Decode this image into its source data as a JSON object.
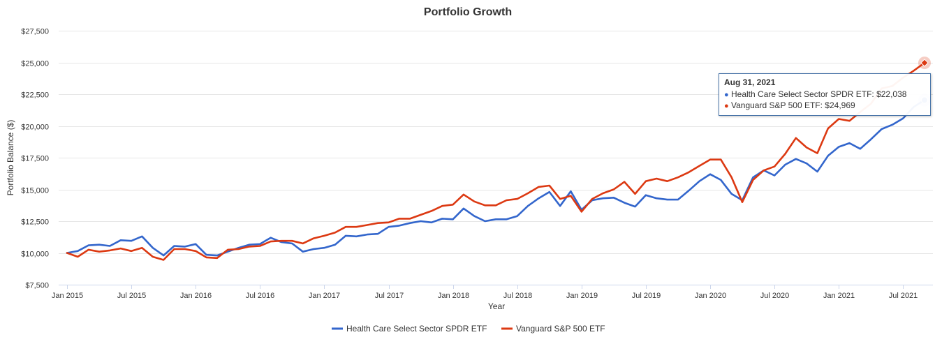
{
  "chart_data": {
    "type": "line",
    "title": "Portfolio Growth",
    "xlabel": "Year",
    "ylabel": "Portfolio Balance ($)",
    "ylim": [
      7500,
      27500
    ],
    "yticks": [
      7500,
      10000,
      12500,
      15000,
      17500,
      20000,
      22500,
      25000,
      27500
    ],
    "ytick_labels": [
      "$7,500",
      "$10,000",
      "$12,500",
      "$15,000",
      "$17,500",
      "$20,000",
      "$22,500",
      "$25,000",
      "$27,500"
    ],
    "xtick_labels": [
      "Jan 2015",
      "Jul 2015",
      "Jan 2016",
      "Jul 2016",
      "Jan 2017",
      "Jul 2017",
      "Jan 2018",
      "Jul 2018",
      "Jan 2019",
      "Jul 2019",
      "Jan 2020",
      "Jul 2020",
      "Jan 2021",
      "Jul 2021"
    ],
    "x_start": "Jan 2015",
    "x_end": "Aug 2021",
    "grid": true,
    "legend_position": "bottom",
    "series": [
      {
        "name": "Health Care Select Sector SPDR ETF",
        "color": "#3366CC",
        "values": [
          10000,
          10150,
          10600,
          10650,
          10550,
          11000,
          10950,
          11300,
          10400,
          9800,
          10550,
          10500,
          10700,
          9850,
          9800,
          10100,
          10400,
          10650,
          10700,
          11200,
          10850,
          10750,
          10100,
          10300,
          10400,
          10650,
          11350,
          11300,
          11450,
          11500,
          12050,
          12150,
          12350,
          12500,
          12400,
          12700,
          12650,
          13500,
          12900,
          12500,
          12650,
          12650,
          12900,
          13700,
          14300,
          14800,
          13700,
          14850,
          13400,
          14150,
          14300,
          14350,
          13950,
          13650,
          14550,
          14300,
          14200,
          14200,
          14900,
          15650,
          16200,
          15750,
          14650,
          14150,
          15950,
          16500,
          16100,
          16950,
          17400,
          17050,
          16400,
          17650,
          18350,
          18650,
          18200,
          18950,
          19750,
          20100,
          20600,
          21500,
          22038
        ]
      },
      {
        "name": "Vanguard S&P 500 ETF",
        "color": "#DC3912",
        "values": [
          10000,
          9700,
          10250,
          10100,
          10200,
          10350,
          10150,
          10400,
          9700,
          9450,
          10300,
          10300,
          10150,
          9650,
          9600,
          10250,
          10300,
          10500,
          10550,
          10900,
          10950,
          10950,
          10750,
          11150,
          11350,
          11600,
          12050,
          12050,
          12200,
          12350,
          12400,
          12700,
          12700,
          13000,
          13300,
          13700,
          13800,
          14600,
          14050,
          13750,
          13750,
          14150,
          14250,
          14700,
          15200,
          15300,
          14250,
          14500,
          13250,
          14250,
          14700,
          15000,
          15600,
          14650,
          15650,
          15850,
          15650,
          15950,
          16350,
          16850,
          17350,
          17350,
          15950,
          14000,
          15750,
          16500,
          16800,
          17800,
          19050,
          18300,
          17850,
          19800,
          20550,
          20400,
          21100,
          21750,
          22950,
          23150,
          23800,
          24350,
          24969
        ]
      }
    ]
  },
  "tooltip": {
    "date": "Aug 31, 2021",
    "rows": [
      {
        "text": "Health Care Select Sector SPDR ETF: $22,038",
        "color": "#3366CC"
      },
      {
        "text": "Vanguard S&P 500 ETF: $24,969",
        "color": "#DC3912"
      }
    ],
    "bullet": "●",
    "border_color": "#4572A7"
  }
}
